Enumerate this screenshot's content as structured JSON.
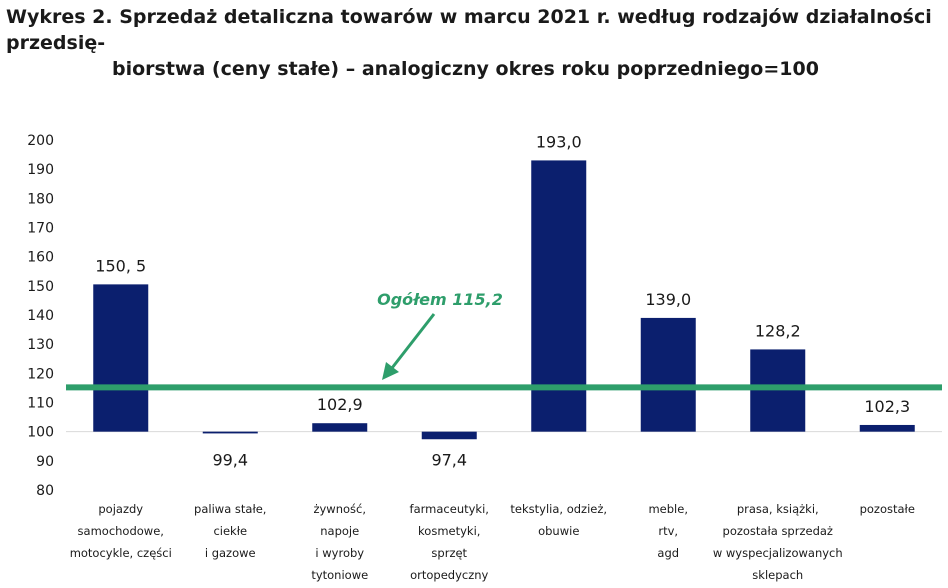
{
  "title": {
    "line1": "Wykres 2. Sprzedaż detaliczna towarów w marcu 2021 r. według rodzajów działalności przedsię-",
    "line2": "biorstwa (ceny stałe) – analogiczny okres roku poprzedniego=100"
  },
  "chart_data": {
    "type": "bar",
    "categories": [
      [
        "pojazdy",
        "samochodowe,",
        "motocykle, części"
      ],
      [
        "paliwa stałe,",
        "ciekłe",
        "i gazowe"
      ],
      [
        "żywność,",
        "napoje",
        "i wyroby",
        "tytoniowe"
      ],
      [
        "farmaceutyki,",
        "kosmetyki,",
        "sprzęt",
        "ortopedyczny"
      ],
      [
        "tekstylia, odzież,",
        "obuwie"
      ],
      [
        "meble,",
        "rtv,",
        "agd"
      ],
      [
        "prasa, książki,",
        "pozostała sprzedaż",
        "w wyspecjalizowanych",
        "sklepach"
      ],
      [
        "pozostałe"
      ]
    ],
    "values": [
      150.5,
      99.4,
      102.9,
      97.4,
      193.0,
      139.0,
      128.2,
      102.3
    ],
    "data_labels": [
      "150, 5",
      "99,4",
      "102,9",
      "97,4",
      "193,0",
      "139,0",
      "128,2",
      "102,3"
    ],
    "baseline": 100,
    "ylim": [
      80,
      200
    ],
    "yticks": [
      80,
      90,
      100,
      110,
      120,
      130,
      140,
      150,
      160,
      170,
      180,
      190,
      200
    ],
    "grid": false,
    "reference_line": {
      "value": 115.2,
      "label": "Ogółem 115,2"
    },
    "colors": {
      "bar": "#0b1f6e",
      "reference": "#2e9e6b",
      "axis": "#d9d9d9",
      "text": "#1a1a1a"
    }
  }
}
